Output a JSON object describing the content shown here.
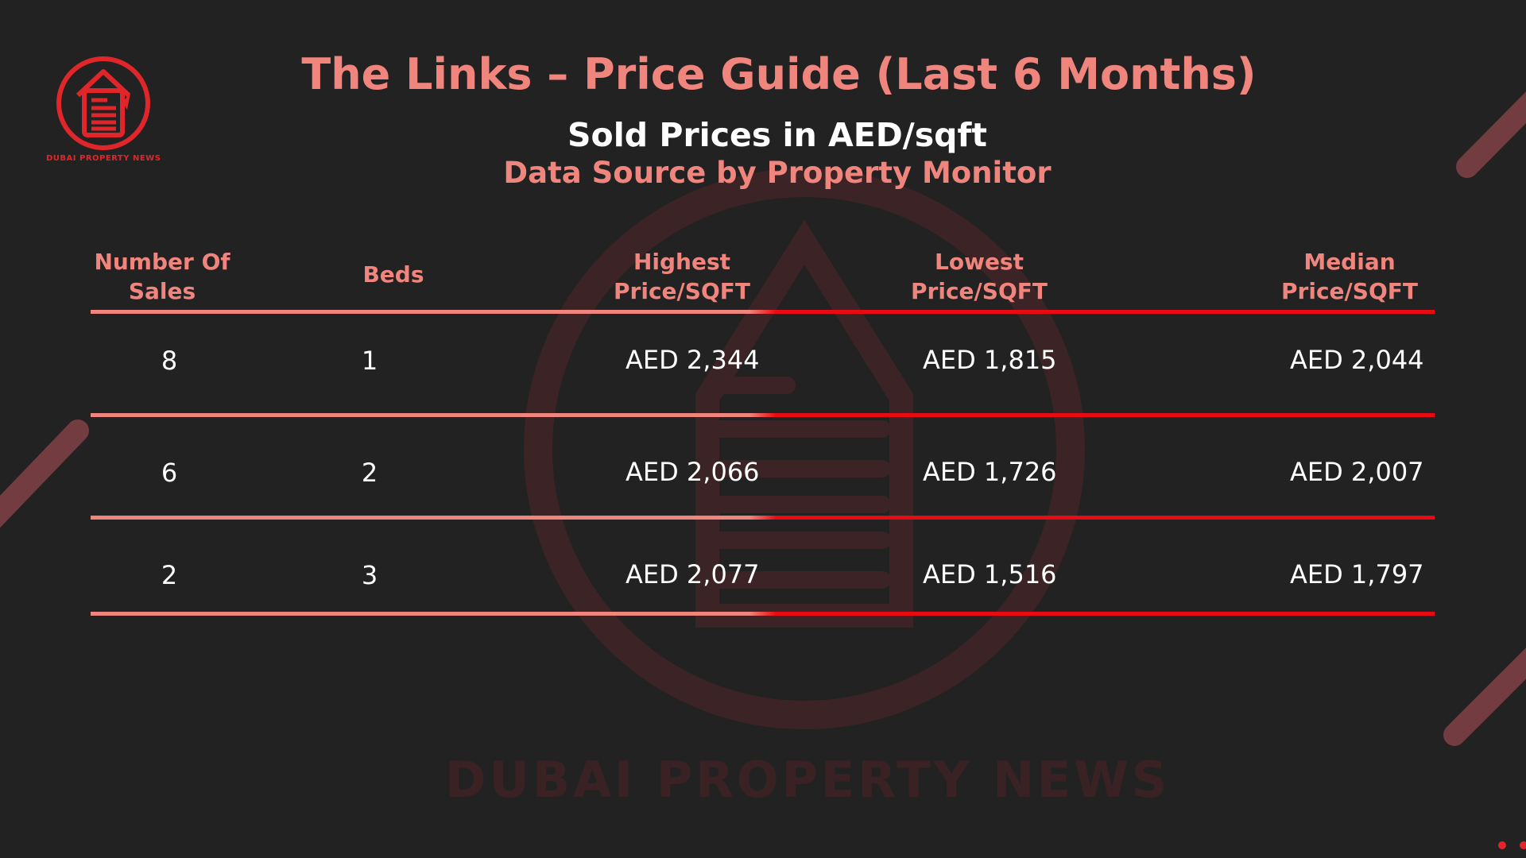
{
  "header": {
    "title": "The Links – Price Guide (Last 6 Months)",
    "subtitle": "Sold Prices in AED/sqft",
    "source": "Data Source by Property Monitor"
  },
  "logo": {
    "caption": "DUBAI PROPERTY NEWS",
    "icon": "house-document-icon"
  },
  "watermark": {
    "text": "DUBAI PROPERTY NEWS",
    "icon": "house-document-icon"
  },
  "table": {
    "columns": [
      {
        "line1": "Number Of",
        "line2": "Sales"
      },
      {
        "line1": "Beds",
        "line2": ""
      },
      {
        "line1": "Highest",
        "line2": "Price/SQFT"
      },
      {
        "line1": "Lowest",
        "line2": "Price/SQFT"
      },
      {
        "line1": "Median",
        "line2": "Price/SQFT"
      }
    ],
    "rows": [
      {
        "sales": "8",
        "beds": "1",
        "highest": "AED 2,344",
        "lowest": "AED 1,815",
        "median": "AED 2,044"
      },
      {
        "sales": "6",
        "beds": "2",
        "highest": "AED 2,066",
        "lowest": "AED 1,726",
        "median": "AED 2,007"
      },
      {
        "sales": "2",
        "beds": "3",
        "highest": "AED 2,077",
        "lowest": "AED 1,516",
        "median": "AED 1,797"
      }
    ]
  },
  "colors": {
    "background": "#232223",
    "accent_salmon": "#f0857e",
    "accent_red": "#e80b14",
    "text_white": "#ffffff"
  }
}
